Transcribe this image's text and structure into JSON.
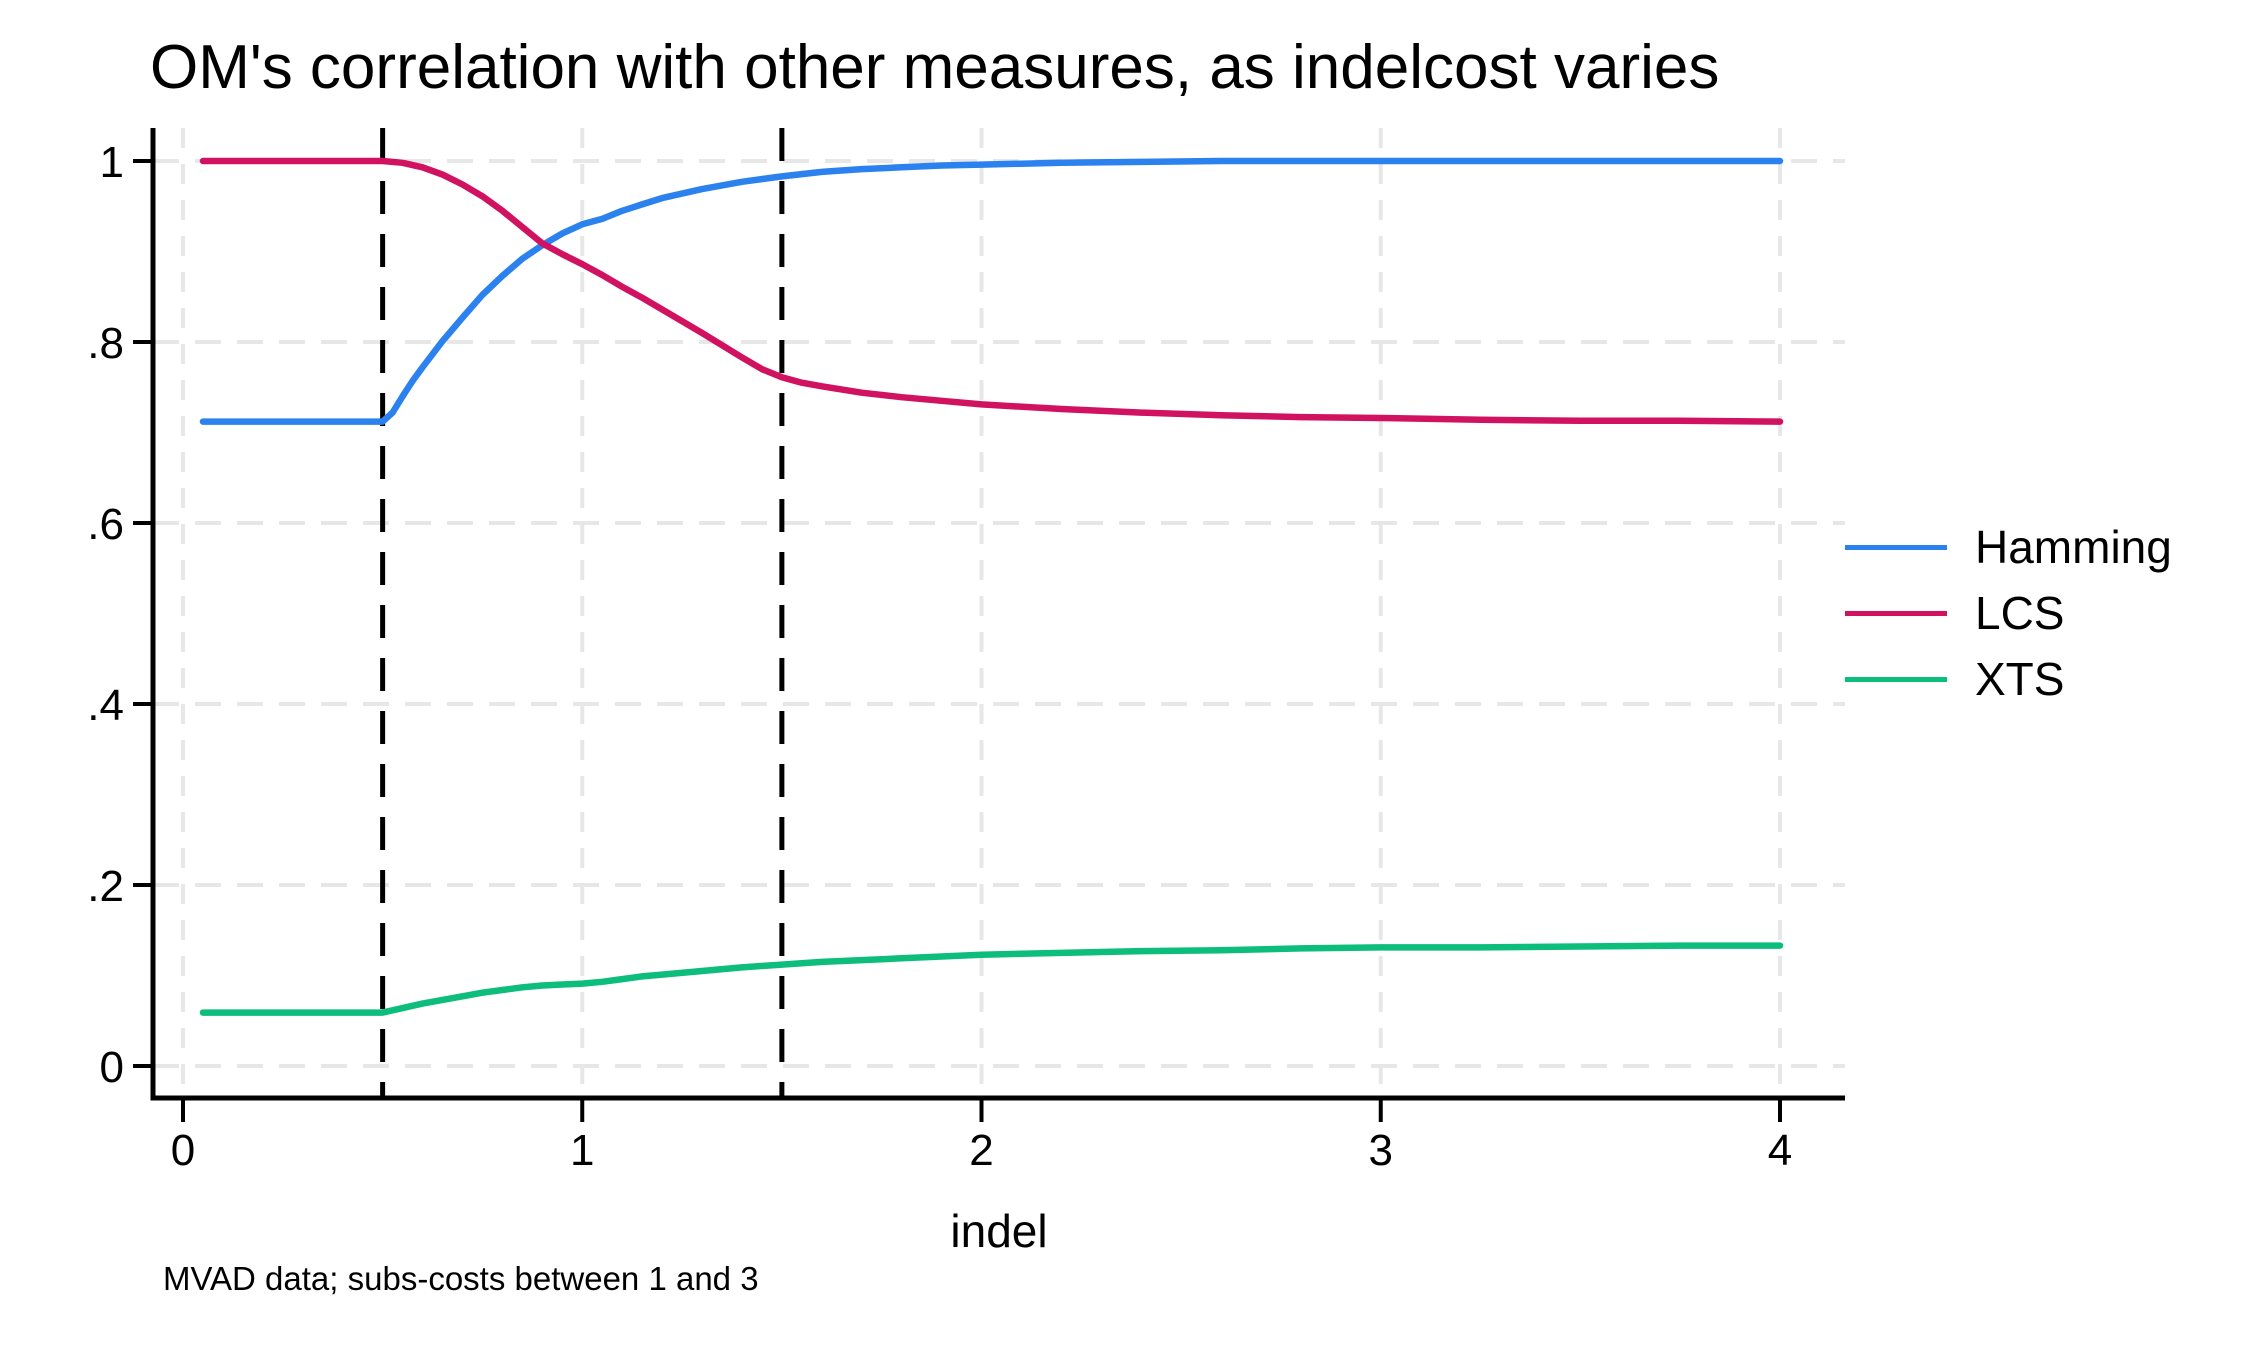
{
  "chart_data": {
    "type": "line",
    "title": "OM's correlation with other measures, as indelcost varies",
    "xlabel": "indel",
    "note": "MVAD data; subs-costs between 1 and 3",
    "background_color": "#ffffff",
    "axis_color": "#000000",
    "text_color": "#000000",
    "xlim": [
      0.05,
      4
    ],
    "ylim": [
      0,
      1
    ],
    "x_ticks": {
      "values": [
        0,
        1,
        2,
        3,
        4
      ],
      "labels": [
        "0",
        "1",
        "2",
        "3",
        "4"
      ]
    },
    "y_ticks": {
      "values": [
        0,
        0.2,
        0.4,
        0.6,
        0.8,
        1
      ],
      "labels": [
        "0",
        ".2",
        ".4",
        ".6",
        ".8",
        "1"
      ]
    },
    "grid": {
      "on": true,
      "style": "dashed",
      "color": "#e7e7e7"
    },
    "reference_lines": {
      "style": "dashed",
      "color": "#000000",
      "x_values": [
        0.5,
        1.5
      ]
    },
    "legend": {
      "position": "right-outside"
    },
    "series": [
      {
        "name": "Hamming",
        "color": "#2b82ee",
        "points": [
          [
            0.05,
            0.712
          ],
          [
            0.15,
            0.712
          ],
          [
            0.25,
            0.712
          ],
          [
            0.35,
            0.712
          ],
          [
            0.45,
            0.712
          ],
          [
            0.5,
            0.712
          ],
          [
            0.525,
            0.722
          ],
          [
            0.55,
            0.74
          ],
          [
            0.575,
            0.757
          ],
          [
            0.6,
            0.772
          ],
          [
            0.65,
            0.801
          ],
          [
            0.7,
            0.827
          ],
          [
            0.75,
            0.852
          ],
          [
            0.8,
            0.873
          ],
          [
            0.85,
            0.892
          ],
          [
            0.9,
            0.907
          ],
          [
            0.95,
            0.92
          ],
          [
            1.0,
            0.93
          ],
          [
            1.05,
            0.936
          ],
          [
            1.1,
            0.945
          ],
          [
            1.15,
            0.952
          ],
          [
            1.2,
            0.959
          ],
          [
            1.3,
            0.969
          ],
          [
            1.4,
            0.977
          ],
          [
            1.5,
            0.983
          ],
          [
            1.6,
            0.988
          ],
          [
            1.7,
            0.991
          ],
          [
            1.8,
            0.993
          ],
          [
            1.9,
            0.995
          ],
          [
            2.0,
            0.996
          ],
          [
            2.2,
            0.998
          ],
          [
            2.4,
            0.999
          ],
          [
            2.6,
            1.0
          ],
          [
            3.0,
            1.0
          ],
          [
            3.5,
            1.0
          ],
          [
            4.0,
            1.0
          ]
        ]
      },
      {
        "name": "LCS",
        "color": "#d11260",
        "points": [
          [
            0.05,
            1.0
          ],
          [
            0.15,
            1.0
          ],
          [
            0.25,
            1.0
          ],
          [
            0.35,
            1.0
          ],
          [
            0.45,
            1.0
          ],
          [
            0.5,
            1.0
          ],
          [
            0.55,
            0.998
          ],
          [
            0.6,
            0.993
          ],
          [
            0.65,
            0.985
          ],
          [
            0.7,
            0.974
          ],
          [
            0.75,
            0.961
          ],
          [
            0.8,
            0.945
          ],
          [
            0.85,
            0.927
          ],
          [
            0.9,
            0.909
          ],
          [
            0.95,
            0.897
          ],
          [
            1.0,
            0.886
          ],
          [
            1.05,
            0.874
          ],
          [
            1.1,
            0.861
          ],
          [
            1.15,
            0.849
          ],
          [
            1.2,
            0.836
          ],
          [
            1.3,
            0.81
          ],
          [
            1.4,
            0.783
          ],
          [
            1.45,
            0.77
          ],
          [
            1.5,
            0.761
          ],
          [
            1.55,
            0.755
          ],
          [
            1.6,
            0.751
          ],
          [
            1.7,
            0.744
          ],
          [
            1.8,
            0.739
          ],
          [
            1.9,
            0.735
          ],
          [
            2.0,
            0.731
          ],
          [
            2.2,
            0.726
          ],
          [
            2.4,
            0.722
          ],
          [
            2.6,
            0.719
          ],
          [
            2.8,
            0.717
          ],
          [
            3.0,
            0.716
          ],
          [
            3.25,
            0.714
          ],
          [
            3.5,
            0.713
          ],
          [
            3.75,
            0.713
          ],
          [
            4.0,
            0.712
          ]
        ]
      },
      {
        "name": "XTS",
        "color": "#0dbd7c",
        "points": [
          [
            0.05,
            0.059
          ],
          [
            0.15,
            0.059
          ],
          [
            0.25,
            0.059
          ],
          [
            0.35,
            0.059
          ],
          [
            0.45,
            0.059
          ],
          [
            0.5,
            0.059
          ],
          [
            0.55,
            0.064
          ],
          [
            0.6,
            0.069
          ],
          [
            0.65,
            0.073
          ],
          [
            0.7,
            0.077
          ],
          [
            0.75,
            0.081
          ],
          [
            0.8,
            0.084
          ],
          [
            0.85,
            0.087
          ],
          [
            0.9,
            0.089
          ],
          [
            0.95,
            0.09
          ],
          [
            1.0,
            0.091
          ],
          [
            1.05,
            0.093
          ],
          [
            1.1,
            0.096
          ],
          [
            1.15,
            0.099
          ],
          [
            1.2,
            0.101
          ],
          [
            1.3,
            0.105
          ],
          [
            1.4,
            0.109
          ],
          [
            1.5,
            0.112
          ],
          [
            1.6,
            0.115
          ],
          [
            1.7,
            0.117
          ],
          [
            1.8,
            0.119
          ],
          [
            1.9,
            0.121
          ],
          [
            2.0,
            0.123
          ],
          [
            2.2,
            0.125
          ],
          [
            2.4,
            0.127
          ],
          [
            2.6,
            0.128
          ],
          [
            2.8,
            0.13
          ],
          [
            3.0,
            0.131
          ],
          [
            3.25,
            0.131
          ],
          [
            3.5,
            0.132
          ],
          [
            3.75,
            0.133
          ],
          [
            4.0,
            0.133
          ]
        ]
      }
    ]
  }
}
